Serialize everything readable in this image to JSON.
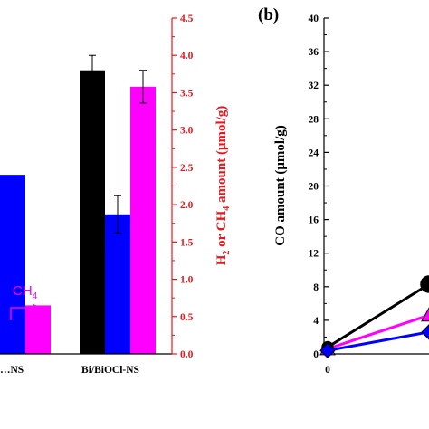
{
  "colors": {
    "black": "#000000",
    "blue": "#0000ff",
    "magenta": "#ff00ff",
    "red": "#e8171b"
  },
  "chart_data": [
    {
      "type": "bar",
      "panel_label": "",
      "categories": [
        "…NS",
        "Bi/BiOCl-NS"
      ],
      "series": [
        {
          "name": "",
          "color": "#000000",
          "values": [
            null,
            3.8
          ],
          "errors": [
            null,
            0.2
          ]
        },
        {
          "name": "H2",
          "color": "#0000ff",
          "values": [
            2.4,
            1.87
          ],
          "errors": [
            null,
            0.25
          ]
        },
        {
          "name": "CH4",
          "color": "#ff00ff",
          "values": [
            0.65,
            3.58
          ],
          "errors": [
            null,
            0.22
          ]
        }
      ],
      "right_axis": {
        "label": "H2 or CH4 amount (μmol/g)",
        "label_parts": {
          "a": "H",
          "a_sub": "2",
          "b": " or CH",
          "b_sub": "4",
          "c": " amount (μmol/g)"
        },
        "ylim": [
          0.0,
          4.5
        ],
        "ticks": [
          "0.0",
          "0.5",
          "1.0",
          "1.5",
          "2.0",
          "2.5",
          "3.0",
          "3.5",
          "4.0",
          "4.5"
        ],
        "color": "#e8171b"
      },
      "annotations": {
        "h2": "H",
        "h2_sub": "2",
        "ch4": "CH",
        "ch4_sub": "4"
      }
    },
    {
      "type": "line",
      "panel_label": "(b)",
      "ylabel": "CO amount (μmol/g)",
      "ylim": [
        0,
        40
      ],
      "yticks": [
        "0",
        "4",
        "8",
        "12",
        "16",
        "20",
        "24",
        "28",
        "32",
        "36",
        "40"
      ],
      "xticks": [
        "0"
      ],
      "series": [
        {
          "name": "",
          "color": "#000000",
          "marker": "circle",
          "x": [
            0,
            1
          ],
          "y": [
            0.8,
            8.3
          ]
        },
        {
          "name": "",
          "color": "#ff00ff",
          "marker": "triangle",
          "x": [
            0,
            1
          ],
          "y": [
            0.6,
            4.6
          ]
        },
        {
          "name": "",
          "color": "#0000ff",
          "marker": "diamond",
          "x": [
            0,
            1
          ],
          "y": [
            0.4,
            2.6
          ]
        }
      ]
    }
  ]
}
